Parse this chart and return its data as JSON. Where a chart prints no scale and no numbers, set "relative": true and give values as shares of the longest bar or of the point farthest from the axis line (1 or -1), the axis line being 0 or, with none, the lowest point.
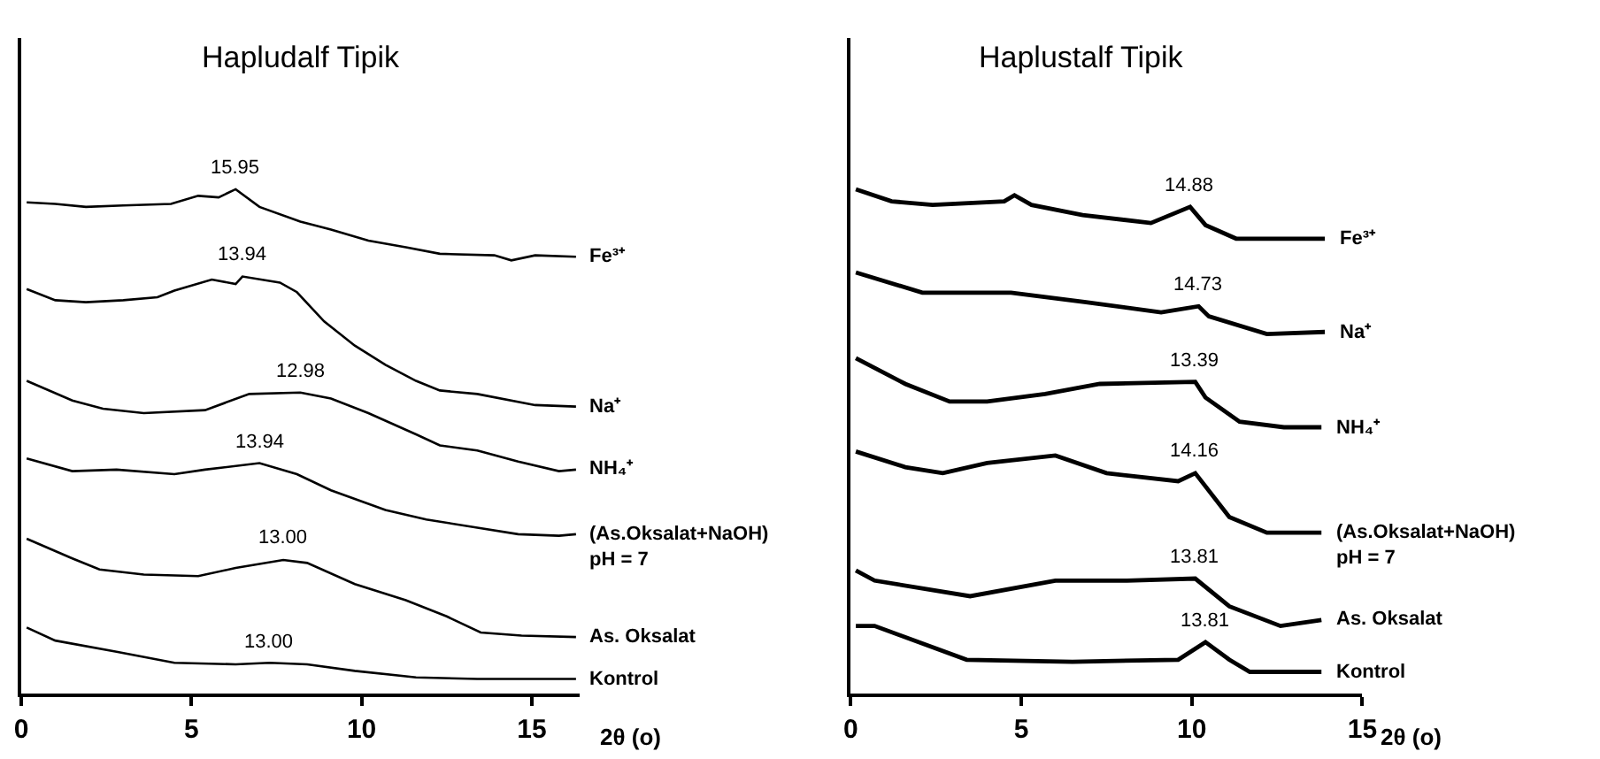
{
  "chart_data": [
    {
      "type": "line",
      "title": "Hapludalf Tipik",
      "xlabel": "2θ (o)",
      "relative": true,
      "xlim": [
        0,
        16.4
      ],
      "xticks": [
        0,
        5,
        10,
        15
      ],
      "marker": "none",
      "line_style": "solid",
      "series": [
        {
          "name": "Fe³⁺",
          "color": "#000000",
          "x": [
            0.16,
            1.0,
            1.9,
            3.0,
            4.4,
            5.2,
            5.8,
            6.3,
            7.0,
            8.2,
            9.1,
            10.2,
            11.3,
            12.3,
            13.9,
            14.4,
            15.1,
            16.3
          ],
          "values": [
            0.974,
            0.971,
            0.965,
            0.968,
            0.971,
            0.987,
            0.984,
            1.0,
            0.965,
            0.936,
            0.92,
            0.898,
            0.885,
            0.872,
            0.869,
            0.859,
            0.869,
            0.866
          ]
        },
        {
          "name": "Na⁺",
          "color": "#000000",
          "x": [
            0.16,
            1.0,
            1.9,
            3.0,
            4.0,
            4.5,
            5.6,
            6.3,
            6.5,
            7.6,
            8.1,
            8.9,
            9.8,
            10.7,
            11.6,
            12.3,
            13.4,
            15.1,
            16.3
          ],
          "values": [
            0.802,
            0.78,
            0.776,
            0.78,
            0.786,
            0.799,
            0.821,
            0.812,
            0.827,
            0.815,
            0.796,
            0.738,
            0.69,
            0.652,
            0.62,
            0.601,
            0.594,
            0.572,
            0.569
          ]
        },
        {
          "name": "NH₄⁺",
          "color": "#000000",
          "x": [
            0.16,
            1.5,
            2.4,
            3.6,
            5.4,
            6.7,
            8.2,
            9.1,
            10.2,
            11.6,
            12.3,
            13.4,
            14.6,
            15.8,
            16.3
          ],
          "values": [
            0.62,
            0.581,
            0.565,
            0.556,
            0.562,
            0.594,
            0.597,
            0.585,
            0.556,
            0.514,
            0.492,
            0.482,
            0.46,
            0.441,
            0.444
          ]
        },
        {
          "name": "(As.Oksalat+NaOH)\npH = 7",
          "color": "#000000",
          "x": [
            0.16,
            1.5,
            2.8,
            4.5,
            5.4,
            7.0,
            8.1,
            9.1,
            10.7,
            11.9,
            13.4,
            14.6,
            15.8,
            16.3
          ],
          "values": [
            0.466,
            0.441,
            0.444,
            0.435,
            0.444,
            0.457,
            0.435,
            0.403,
            0.364,
            0.345,
            0.329,
            0.316,
            0.313,
            0.316
          ]
        },
        {
          "name": "As. Oksalat",
          "color": "#000000",
          "x": [
            0.16,
            1.5,
            2.3,
            3.6,
            5.2,
            6.3,
            7.7,
            8.4,
            9.8,
            11.3,
            12.5,
            13.5,
            14.7,
            16.3
          ],
          "values": [
            0.307,
            0.268,
            0.246,
            0.236,
            0.233,
            0.249,
            0.265,
            0.259,
            0.217,
            0.185,
            0.153,
            0.121,
            0.115,
            0.112
          ]
        },
        {
          "name": "Kontrol",
          "color": "#000000",
          "x": [
            0.16,
            1.0,
            2.8,
            4.5,
            6.3,
            7.3,
            8.4,
            9.8,
            11.6,
            13.4,
            16.3
          ],
          "values": [
            0.131,
            0.105,
            0.083,
            0.061,
            0.058,
            0.061,
            0.058,
            0.045,
            0.032,
            0.029,
            0.029
          ]
        }
      ],
      "annotations": [
        {
          "text": "15.95",
          "x": 6.3,
          "y": 1.0
        },
        {
          "text": "13.94",
          "x": 6.5,
          "y": 0.827
        },
        {
          "text": "12.98",
          "x": 8.2,
          "y": 0.597
        },
        {
          "text": "13.94",
          "x": 7.0,
          "y": 0.457
        },
        {
          "text": "13.00",
          "x": 7.7,
          "y": 0.265
        },
        {
          "text": "13.00",
          "x": 7.3,
          "y": 0.061
        }
      ]
    },
    {
      "type": "line",
      "title": "Haplustalf Tipik",
      "xlabel": "2θ (o)",
      "relative": true,
      "xlim": [
        0,
        15
      ],
      "xticks": [
        0,
        5,
        10,
        15
      ],
      "marker": "none",
      "line_style": "solid",
      "series": [
        {
          "name": "Fe³⁺",
          "color": "#000000",
          "x": [
            0.15,
            1.2,
            2.4,
            4.5,
            4.8,
            5.3,
            6.8,
            8.8,
            9.95,
            10.4,
            11.3,
            13.9
          ],
          "values": [
            1.0,
            0.976,
            0.969,
            0.976,
            0.988,
            0.969,
            0.949,
            0.933,
            0.965,
            0.929,
            0.902,
            0.902
          ]
        },
        {
          "name": "Na⁺",
          "color": "#000000",
          "x": [
            0.15,
            2.1,
            4.7,
            6.9,
            9.1,
            10.2,
            10.5,
            12.2,
            13.9
          ],
          "values": [
            0.835,
            0.795,
            0.795,
            0.776,
            0.756,
            0.768,
            0.748,
            0.713,
            0.717
          ]
        },
        {
          "name": "NH₄⁺",
          "color": "#000000",
          "x": [
            0.15,
            1.6,
            2.9,
            4.0,
            5.7,
            7.3,
            10.1,
            10.4,
            11.4,
            12.7,
            13.8
          ],
          "values": [
            0.665,
            0.614,
            0.579,
            0.579,
            0.594,
            0.614,
            0.618,
            0.587,
            0.539,
            0.528,
            0.528
          ]
        },
        {
          "name": "(As.Oksalat+NaOH)\npH = 7",
          "color": "#000000",
          "x": [
            0.15,
            1.6,
            2.7,
            4.0,
            6.0,
            7.5,
            9.6,
            10.1,
            11.1,
            12.2,
            13.8
          ],
          "values": [
            0.48,
            0.449,
            0.437,
            0.457,
            0.472,
            0.437,
            0.421,
            0.437,
            0.35,
            0.319,
            0.319
          ]
        },
        {
          "name": "As. Oksalat",
          "color": "#000000",
          "x": [
            0.15,
            0.7,
            3.5,
            6.0,
            8.1,
            10.1,
            11.1,
            12.6,
            13.8
          ],
          "values": [
            0.244,
            0.224,
            0.193,
            0.224,
            0.224,
            0.228,
            0.173,
            0.134,
            0.146
          ]
        },
        {
          "name": "Kontrol",
          "color": "#000000",
          "x": [
            0.15,
            0.7,
            3.4,
            6.5,
            9.6,
            10.4,
            11.1,
            11.7,
            13.8
          ],
          "values": [
            0.134,
            0.134,
            0.067,
            0.063,
            0.067,
            0.102,
            0.067,
            0.043,
            0.043
          ]
        }
      ],
      "annotations": [
        {
          "text": "14.88",
          "x": 9.95,
          "y": 0.965
        },
        {
          "text": "14.73",
          "x": 10.2,
          "y": 0.768
        },
        {
          "text": "13.39",
          "x": 10.1,
          "y": 0.618
        },
        {
          "text": "14.16",
          "x": 10.1,
          "y": 0.437
        },
        {
          "text": "13.81",
          "x": 10.1,
          "y": 0.228
        },
        {
          "text": "13.81",
          "x": 10.4,
          "y": 0.102
        }
      ]
    }
  ]
}
